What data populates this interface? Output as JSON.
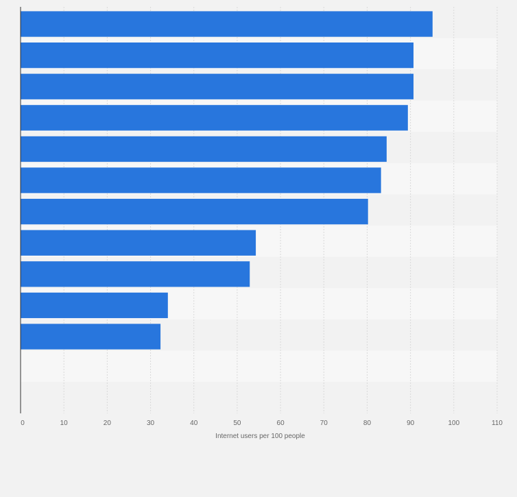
{
  "chart_data": {
    "type": "bar",
    "orientation": "horizontal",
    "title": "",
    "categories": [
      "",
      "",
      "",
      "",
      "",
      "",
      "",
      "",
      "",
      "",
      "",
      "",
      ""
    ],
    "values": [
      95.1,
      90.7,
      90.7,
      89.4,
      84.5,
      83.2,
      80.2,
      54.3,
      52.9,
      34.0,
      32.3,
      null,
      null
    ],
    "xlabel": "Internet users per 100 people",
    "ylabel": "",
    "xlim": [
      0,
      110
    ],
    "x_ticks": [
      "0",
      "10",
      "20",
      "30",
      "40",
      "50",
      "60",
      "70",
      "80",
      "90",
      "100",
      "110"
    ],
    "grid": true,
    "legend": "none",
    "colors": {
      "bar": "#2876dd",
      "band_light": "#f7f7f7",
      "band_dark": "#f2f2f2",
      "grid": "#d9d9d9",
      "axis": "#333333",
      "tick_text": "#666666"
    }
  }
}
